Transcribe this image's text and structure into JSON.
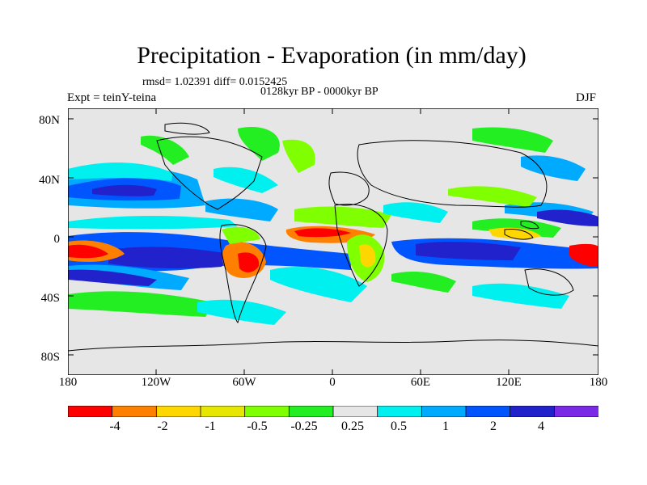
{
  "title": "Precipitation - Evaporation (in mm/day)",
  "stats": "rmsd= 1.02391 diff= 0.0152425",
  "period": "0128kyr BP - 0000kyr BP",
  "experiment": "Expt = teinY-teina",
  "season": "DJF",
  "lat_labels": [
    "80N",
    "40N",
    "0",
    "40S",
    "80S"
  ],
  "lon_labels": [
    "180",
    "120W",
    "60W",
    "0",
    "60E",
    "120E",
    "180"
  ],
  "colorbar": {
    "colors": [
      "#ff0000",
      "#ff8000",
      "#ffd700",
      "#e6e600",
      "#80ff00",
      "#22ee22",
      "#e6e6e6",
      "#00f0f0",
      "#00aaff",
      "#0055ff",
      "#2222cc",
      "#7a2ae6"
    ],
    "labels": [
      "-4",
      "-2",
      "-1",
      "-0.5",
      "-0.25",
      "0.25",
      "0.5",
      "1",
      "2",
      "4"
    ]
  },
  "colors": {
    "background_field": "#e6e6e6",
    "positive": "#2222cc",
    "negative": "#ff0000"
  }
}
